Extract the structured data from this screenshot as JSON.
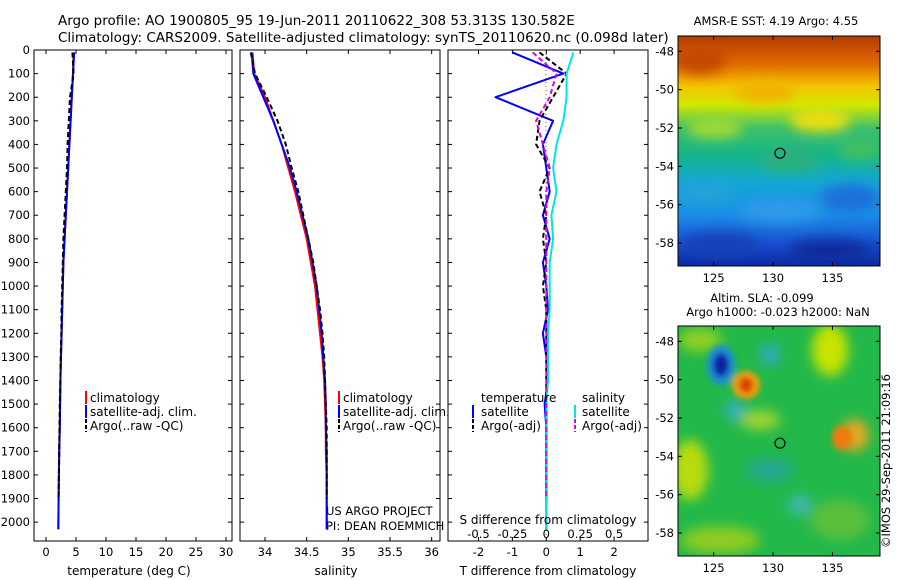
{
  "header": {
    "line1": "Argo profile: AO 1900805_95 19-Jun-2011 20110622_308 53.313S 130.582E",
    "line2": "Climatology: CARS2009. Satellite-adjusted climatology: synTS_20110620.nc (0.098d later)"
  },
  "colors": {
    "climatology": "#ff0000",
    "satellite": "#0000ff",
    "argo": "#000000",
    "sal_satellite": "#00e5e5",
    "sal_argo": "#e000e0"
  },
  "chart_data": [
    {
      "id": "temperature",
      "type": "line",
      "xlabel": "temperature (deg C)",
      "ylabel": "",
      "xlim": [
        -2,
        31
      ],
      "ylim": [
        2080,
        0
      ],
      "y_reversed": true,
      "xticks": [
        "0",
        "5",
        "10",
        "15",
        "20",
        "25",
        "30"
      ],
      "xtick_values": [
        0,
        5,
        10,
        15,
        20,
        25,
        30
      ],
      "yticks": [
        "0",
        "100",
        "200",
        "300",
        "400",
        "500",
        "600",
        "700",
        "800",
        "900",
        "1000",
        "1100",
        "1200",
        "1300",
        "1400",
        "1500",
        "1600",
        "1700",
        "1800",
        "1900",
        "2000"
      ],
      "ytick_values": [
        0,
        100,
        200,
        300,
        400,
        500,
        600,
        700,
        800,
        900,
        1000,
        1100,
        1200,
        1300,
        1400,
        1500,
        1600,
        1700,
        1800,
        1900,
        2000
      ],
      "legend": [
        "climatology",
        "satellite-adj. clim.",
        "Argo(..raw -QC)"
      ],
      "series": [
        {
          "name": "climatology",
          "color": "#ff0000",
          "dashed": false,
          "x": [
            4.6,
            4.5,
            4.3,
            4.1,
            3.9,
            3.7,
            3.5,
            3.3,
            3.1,
            2.9,
            2.8,
            2.7,
            2.6,
            2.5,
            2.4,
            2.35,
            2.3,
            2.2,
            2.15,
            2.1,
            2.05
          ],
          "y": [
            10,
            100,
            200,
            300,
            400,
            500,
            600,
            700,
            800,
            900,
            1000,
            1100,
            1200,
            1300,
            1400,
            1500,
            1600,
            1700,
            1800,
            1900,
            2030
          ]
        },
        {
          "name": "satellite-adj. clim.",
          "color": "#0000ff",
          "dashed": false,
          "x": [
            4.7,
            4.5,
            4.3,
            4.1,
            3.9,
            3.7,
            3.5,
            3.3,
            3.1,
            2.9,
            2.8,
            2.7,
            2.6,
            2.5,
            2.4,
            2.35,
            2.3,
            2.2,
            2.15,
            2.1,
            2.05
          ],
          "y": [
            10,
            100,
            200,
            300,
            400,
            500,
            600,
            700,
            800,
            900,
            1000,
            1100,
            1200,
            1300,
            1400,
            1500,
            1600,
            1700,
            1800,
            1900,
            2030
          ]
        },
        {
          "name": "Argo(..raw -QC)",
          "color": "#000000",
          "dashed": true,
          "x": [
            4.4,
            4.6,
            4.0,
            3.8,
            3.6,
            3.5,
            3.3,
            3.1,
            2.9,
            2.8,
            2.7,
            2.6,
            2.55,
            2.45,
            2.4,
            2.3,
            2.25,
            2.2,
            2.15,
            2.1
          ],
          "y": [
            10,
            100,
            200,
            300,
            400,
            500,
            600,
            700,
            800,
            900,
            1000,
            1100,
            1200,
            1300,
            1400,
            1500,
            1600,
            1700,
            1800,
            1900
          ]
        }
      ]
    },
    {
      "id": "salinity",
      "type": "line",
      "xlabel": "salinity",
      "ylabel": "",
      "xlim": [
        33.7,
        36.1
      ],
      "ylim": [
        2080,
        0
      ],
      "y_reversed": true,
      "xticks": [
        "34",
        "34.5",
        "35",
        "35.5",
        "36"
      ],
      "xtick_values": [
        34,
        34.5,
        35,
        35.5,
        36
      ],
      "legend": [
        "climatology",
        "satellite-adj. clim.",
        "Argo(..raw -QC)"
      ],
      "annotations": [
        "US ARGO PROJECT",
        "PI: DEAN ROEMMICH"
      ],
      "series": [
        {
          "name": "climatology",
          "color": "#ff0000",
          "dashed": false,
          "x": [
            33.85,
            33.87,
            34.0,
            34.1,
            34.2,
            34.28,
            34.36,
            34.43,
            34.5,
            34.55,
            34.6,
            34.63,
            34.66,
            34.69,
            34.71,
            34.72,
            34.73,
            34.73,
            34.74,
            34.74,
            34.74
          ],
          "y": [
            10,
            100,
            200,
            300,
            400,
            500,
            600,
            700,
            800,
            900,
            1000,
            1100,
            1200,
            1300,
            1400,
            1500,
            1600,
            1700,
            1800,
            1900,
            2030
          ]
        },
        {
          "name": "satellite-adj. clim.",
          "color": "#0000ff",
          "dashed": false,
          "x": [
            33.84,
            33.86,
            33.98,
            34.1,
            34.2,
            34.3,
            34.38,
            34.45,
            34.52,
            34.57,
            34.62,
            34.65,
            34.68,
            34.7,
            34.72,
            34.73,
            34.73,
            34.74,
            34.74,
            34.74,
            34.74
          ],
          "y": [
            10,
            100,
            200,
            300,
            400,
            500,
            600,
            700,
            800,
            900,
            1000,
            1100,
            1200,
            1300,
            1400,
            1500,
            1600,
            1700,
            1800,
            1900,
            2030
          ]
        },
        {
          "name": "Argo(..raw -QC)",
          "color": "#000000",
          "dashed": true,
          "x": [
            33.83,
            33.88,
            34.02,
            34.15,
            34.25,
            34.32,
            34.4,
            34.46,
            34.52,
            34.58,
            34.62,
            34.66,
            34.69,
            34.71,
            34.72,
            34.73,
            34.74,
            34.74,
            34.74,
            34.74
          ],
          "y": [
            10,
            100,
            200,
            300,
            400,
            500,
            600,
            700,
            800,
            900,
            1000,
            1100,
            1200,
            1300,
            1400,
            1500,
            1600,
            1700,
            1800,
            1900
          ]
        }
      ]
    },
    {
      "id": "difference",
      "type": "line",
      "xlabel": "T difference from climatology",
      "xlabel_top": "S difference from climatology",
      "xlim": [
        -2.9,
        3.0
      ],
      "ylim": [
        2080,
        0
      ],
      "y_reversed": true,
      "xticks": [
        "-2",
        "-1",
        "0",
        "1",
        "2"
      ],
      "xtick_values": [
        -2,
        -1,
        0,
        1,
        2
      ],
      "sticks": [
        "-0.5",
        "-0.25",
        "0",
        "0.25",
        "0.5"
      ],
      "stick_values": [
        -2,
        -1,
        0,
        1,
        2
      ],
      "legend_titles": [
        "temperature",
        "salinity"
      ],
      "legend": [
        "satellite",
        "Argo(-adj)",
        "satellite",
        "Argo(-adj)"
      ],
      "series": [
        {
          "name": "satellite",
          "color": "#0000ff",
          "dashed": false,
          "x": [
            -1.0,
            0.5,
            -1.5,
            0.2,
            -0.1,
            0.0,
            0.1,
            -0.1,
            0.1,
            -0.1,
            0.0,
            0.05,
            -0.1,
            0.0,
            0.05,
            -0.05,
            0.0,
            0.0,
            0.0,
            0.0,
            0.0
          ],
          "y": [
            10,
            100,
            200,
            300,
            400,
            500,
            600,
            700,
            800,
            900,
            1000,
            1100,
            1200,
            1300,
            1400,
            1500,
            1600,
            1700,
            1800,
            1900,
            2030
          ]
        },
        {
          "name": "Argo(-adj)",
          "color": "#000000",
          "dashed": true,
          "x": [
            -0.2,
            0.6,
            0.2,
            -0.2,
            -0.3,
            0.1,
            -0.2,
            0.0,
            -0.1,
            0.0,
            -0.1,
            0.0,
            0.0,
            0.0,
            0.0,
            0.0,
            0.0,
            0.0,
            0.0,
            0.0
          ],
          "y": [
            10,
            100,
            200,
            300,
            400,
            500,
            600,
            700,
            800,
            900,
            1000,
            1100,
            1200,
            1300,
            1400,
            1500,
            1600,
            1700,
            1800,
            1900
          ]
        },
        {
          "name": "satellite",
          "color": "#00e5e5",
          "dashed": false,
          "x": [
            0.8,
            0.6,
            0.6,
            0.5,
            0.3,
            0.2,
            0.3,
            0.15,
            0.2,
            0.1,
            0.1,
            0.1,
            0.05,
            0.05,
            0.05,
            0.0,
            0.0,
            0.0,
            0.0,
            0.0,
            0.0
          ],
          "y": [
            10,
            100,
            200,
            300,
            400,
            500,
            600,
            700,
            800,
            900,
            1000,
            1100,
            1200,
            1300,
            1400,
            1500,
            1600,
            1700,
            1800,
            1900,
            2030
          ]
        },
        {
          "name": "Argo(-adj)",
          "color": "#e000e0",
          "dashed": true,
          "x": [
            -0.4,
            0.3,
            0.1,
            -0.3,
            -0.1,
            0.1,
            0.0,
            0.0,
            0.0,
            0.0,
            0.0,
            0.0,
            0.0,
            0.0,
            0.0,
            0.0,
            0.0,
            0.0,
            0.0,
            0.0
          ],
          "y": [
            10,
            100,
            200,
            300,
            400,
            500,
            600,
            700,
            800,
            900,
            1000,
            1100,
            1200,
            1300,
            1400,
            1500,
            1600,
            1700,
            1800,
            1900
          ]
        }
      ]
    },
    {
      "id": "sst_map",
      "type": "heatmap",
      "title": "AMSR-E SST: 4.19 Argo: 4.55",
      "xlim": [
        122,
        139
      ],
      "ylim": [
        -59.2,
        -47.2
      ],
      "xticks": [
        "125",
        "130",
        "135"
      ],
      "xtick_values": [
        125,
        130,
        135
      ],
      "yticks": [
        "-48",
        "-50",
        "-52",
        "-54",
        "-56",
        "-58"
      ],
      "ytick_values": [
        -48,
        -50,
        -52,
        -54,
        -56,
        -58
      ],
      "marker": {
        "lon": 130.582,
        "lat": -53.313
      }
    },
    {
      "id": "sla_map",
      "type": "heatmap",
      "title": "Altim. SLA: -0.099",
      "title2": "Argo h1000: -0.023 h2000: NaN",
      "xlim": [
        122,
        139
      ],
      "ylim": [
        -59.2,
        -47.2
      ],
      "xticks": [
        "125",
        "130",
        "135"
      ],
      "xtick_values": [
        125,
        130,
        135
      ],
      "yticks": [
        "-48",
        "-50",
        "-52",
        "-54",
        "-56",
        "-58"
      ],
      "ytick_values": [
        -48,
        -50,
        -52,
        -54,
        -56,
        -58
      ],
      "marker": {
        "lon": 130.582,
        "lat": -53.313
      }
    }
  ],
  "credit": "©IMOS 29-Sep-2011 21:09:16"
}
